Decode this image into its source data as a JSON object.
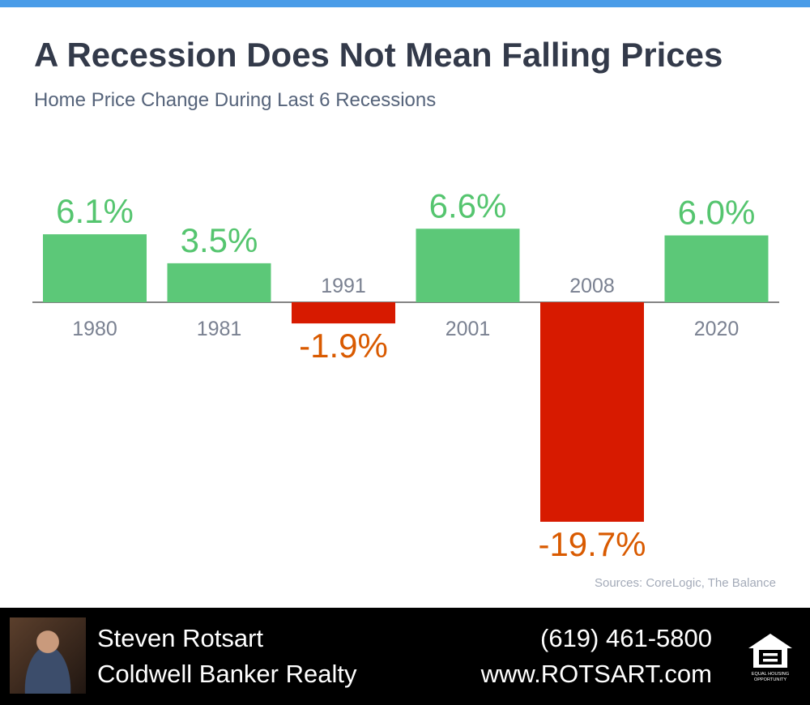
{
  "colors": {
    "accent": "#4a9ce8",
    "positive": "#5cc878",
    "positive_label": "#55c56f",
    "negative": "#d71a00",
    "negative_label": "#d95a00",
    "category_label": "#7a8191",
    "baseline": "#3a3a3a"
  },
  "header": {
    "title": "A Recession Does Not Mean Falling Prices",
    "subtitle": "Home Price Change During Last 6 Recessions"
  },
  "chart_data": {
    "type": "bar",
    "title": "A Recession Does Not Mean Falling Prices",
    "subtitle": "Home Price Change During Last 6 Recessions",
    "categories": [
      "1980",
      "1981",
      "1991",
      "2001",
      "2008",
      "2020"
    ],
    "values": [
      6.1,
      3.5,
      -1.9,
      6.6,
      -19.7,
      6.0
    ],
    "value_labels": [
      "6.1%",
      "3.5%",
      "-1.9%",
      "6.6%",
      "-19.7%",
      "6.0%"
    ],
    "ylim": [
      -19.7,
      6.6
    ],
    "grid": false,
    "legend": "none"
  },
  "source": "Sources: CoreLogic, The Balance",
  "footer": {
    "agent_name": "Steven Rotsart",
    "company": "Coldwell Banker Realty",
    "phone": "(619) 461-5800",
    "website": "www.ROTSART.com",
    "logo_text": "EQUAL HOUSING OPPORTUNITY",
    "logo_icon": "equal-housing-icon"
  }
}
